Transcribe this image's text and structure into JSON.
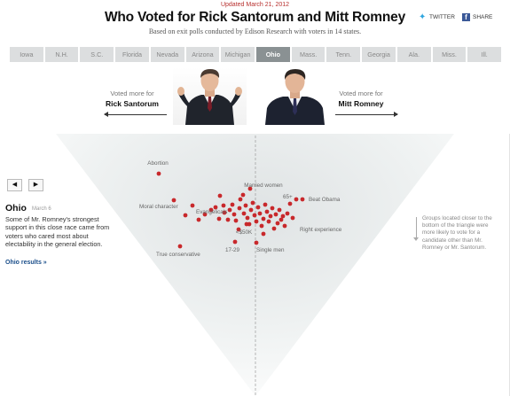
{
  "header": {
    "updated": "Updated March 21, 2012",
    "title": "Who Voted for Rick Santorum and Mitt Romney",
    "subtitle": "Based on exit polls conducted by Edison Research with voters in 14 states."
  },
  "share": {
    "twitter": "TWITTER",
    "facebook": "SHARE"
  },
  "tabs": [
    {
      "label": "Iowa",
      "active": false
    },
    {
      "label": "N.H.",
      "active": false
    },
    {
      "label": "S.C.",
      "active": false
    },
    {
      "label": "Florida",
      "active": false
    },
    {
      "label": "Nevada",
      "active": false
    },
    {
      "label": "Arizona",
      "active": false
    },
    {
      "label": "Michigan",
      "active": false
    },
    {
      "label": "Ohio",
      "active": true
    },
    {
      "label": "Mass.",
      "active": false
    },
    {
      "label": "Tenn.",
      "active": false
    },
    {
      "label": "Georgia",
      "active": false
    },
    {
      "label": "Ala.",
      "active": false
    },
    {
      "label": "Miss.",
      "active": false
    },
    {
      "label": "Ill.",
      "active": false
    }
  ],
  "candidates": {
    "left": {
      "prefix": "Voted more for",
      "name": "Rick Santorum"
    },
    "right": {
      "prefix": "Voted more for",
      "name": "Mitt Romney"
    }
  },
  "nav": {
    "prev": "◀",
    "next": "▶"
  },
  "state": {
    "name": "Ohio",
    "date": "March 6",
    "description": "Some of Mr. Romney's strongest support in this close race came from voters who cared most about electability in the general election.",
    "link": "Ohio results »"
  },
  "note": "Groups located closer to the bottom of the triangle were more likely to vote for a candidate other than Mr. Romney or Mr. Santorum.",
  "colors": {
    "dot": "#c8282b",
    "tab_active": "#8a9193",
    "tab_inactive": "#dcdedf",
    "link": "#1a4e8a",
    "updated": "#b8312f"
  },
  "chart_data": {
    "type": "scatter",
    "labels": [
      "Abortion",
      "Married women",
      "65+",
      "Beat Obama",
      "Moral character",
      "Evangelicals",
      "Right experience",
      "<$50K",
      "17-29",
      "Single men",
      "True conservative"
    ],
    "x_range": [
      -1,
      1
    ],
    "y_range": [
      0,
      1
    ]
  }
}
